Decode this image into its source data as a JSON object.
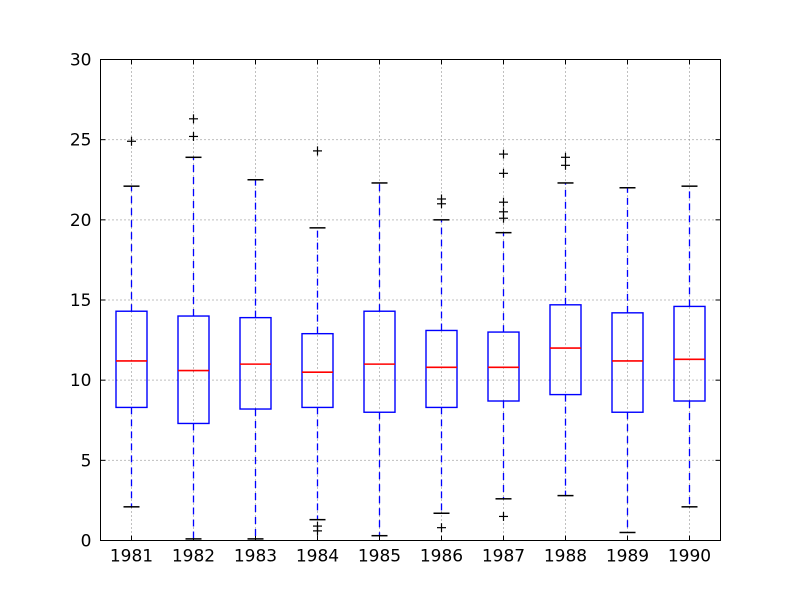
{
  "figure": {
    "background": "#ffffff"
  },
  "chart_data": {
    "type": "boxplot",
    "title": "",
    "xlabel": "",
    "ylabel": "",
    "categories": [
      "1981",
      "1982",
      "1983",
      "1984",
      "1985",
      "1986",
      "1987",
      "1988",
      "1989",
      "1990"
    ],
    "series": [
      {
        "label": "1981",
        "whisker_low": 2.1,
        "q1": 8.3,
        "median": 11.2,
        "q3": 14.3,
        "whisker_high": 22.1,
        "outliers": [
          24.9
        ]
      },
      {
        "label": "1982",
        "whisker_low": 0.1,
        "q1": 7.3,
        "median": 10.6,
        "q3": 14.0,
        "whisker_high": 23.9,
        "outliers": [
          26.3,
          25.2
        ]
      },
      {
        "label": "1983",
        "whisker_low": 0.1,
        "q1": 8.2,
        "median": 11.0,
        "q3": 13.9,
        "whisker_high": 22.5,
        "outliers": []
      },
      {
        "label": "1984",
        "whisker_low": 1.3,
        "q1": 8.3,
        "median": 10.5,
        "q3": 12.9,
        "whisker_high": 19.5,
        "outliers": [
          24.3,
          0.9,
          0.6
        ]
      },
      {
        "label": "1985",
        "whisker_low": 0.3,
        "q1": 8.0,
        "median": 11.0,
        "q3": 14.3,
        "whisker_high": 22.3,
        "outliers": []
      },
      {
        "label": "1986",
        "whisker_low": 1.7,
        "q1": 8.3,
        "median": 10.8,
        "q3": 13.1,
        "whisker_high": 20.0,
        "outliers": [
          21.3,
          21.0,
          0.8
        ]
      },
      {
        "label": "1987",
        "whisker_low": 2.6,
        "q1": 8.7,
        "median": 10.8,
        "q3": 13.0,
        "whisker_high": 19.2,
        "outliers": [
          24.1,
          22.9,
          21.1,
          20.5,
          20.1,
          1.5
        ]
      },
      {
        "label": "1988",
        "whisker_low": 2.8,
        "q1": 9.1,
        "median": 12.0,
        "q3": 14.7,
        "whisker_high": 22.3,
        "outliers": [
          23.9,
          23.4
        ]
      },
      {
        "label": "1989",
        "whisker_low": 0.5,
        "q1": 8.0,
        "median": 11.2,
        "q3": 14.2,
        "whisker_high": 22.0,
        "outliers": []
      },
      {
        "label": "1990",
        "whisker_low": 2.1,
        "q1": 8.7,
        "median": 11.3,
        "q3": 14.6,
        "whisker_high": 22.1,
        "outliers": []
      }
    ],
    "ylim": [
      0,
      30
    ],
    "yticks": [
      0,
      5,
      10,
      15,
      20,
      25,
      30
    ],
    "grid": "dotted, horizontal and vertical at every tick",
    "legend": "none",
    "colors": {
      "box": "#0000ff",
      "median": "#ff0000",
      "whisker": "#0000ff",
      "cap": "#000000",
      "outlier": "#000000",
      "grid": "#808080",
      "axis": "#000000",
      "label": "#000000"
    }
  }
}
